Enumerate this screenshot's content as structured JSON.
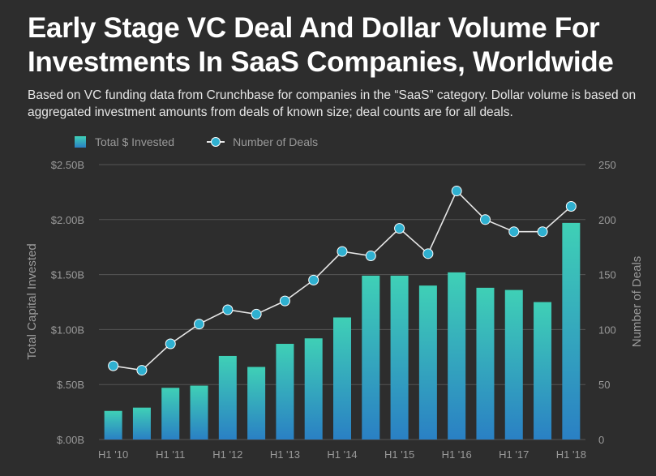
{
  "header": {
    "title": "Early Stage VC Deal And Dollar Volume For Investments In SaaS Companies, Worldwide",
    "subtitle": "Based on VC funding data from Crunchbase for companies in the “SaaS” category. Dollar volume is based on aggregated investment amounts from deals of known size; deal counts are for all deals."
  },
  "legend": {
    "bars_label": "Total $ Invested",
    "line_label": "Number of Deals"
  },
  "colors": {
    "background": "#2d2d2d",
    "bar_top": "#3fd0b6",
    "bar_bottom": "#2a80c4",
    "marker": "#2fb0d0",
    "line": "#e6e6e6",
    "grid": "#555555",
    "axis_text": "#9a9a9a"
  },
  "chart_data": {
    "type": "bar",
    "categories": [
      "H1 '10",
      "H2 '10",
      "H1 '11",
      "H2 '11",
      "H1 '12",
      "H2 '12",
      "H1 '13",
      "H2 '13",
      "H1 '14",
      "H2 '14",
      "H1 '15",
      "H2 '15",
      "H1 '16",
      "H2 '16",
      "H1 '17",
      "H2 '17",
      "H1 '18"
    ],
    "x_tick_labels": [
      "H1 '10",
      "",
      "H1 '11",
      "",
      "H1 '12",
      "",
      "H1 '13",
      "",
      "H1 '14",
      "",
      "H1 '15",
      "",
      "H1 '16",
      "",
      "H1 '17",
      "",
      "H1 '18"
    ],
    "series": [
      {
        "name": "Total $ Invested",
        "type": "bar",
        "axis": "left",
        "values": [
          0.26,
          0.29,
          0.47,
          0.49,
          0.76,
          0.66,
          0.87,
          0.92,
          1.11,
          1.49,
          1.49,
          1.4,
          1.52,
          1.38,
          1.36,
          1.25,
          1.97
        ]
      },
      {
        "name": "Number of Deals",
        "type": "line",
        "axis": "right",
        "values": [
          67,
          63,
          87,
          105,
          118,
          114,
          126,
          145,
          171,
          167,
          192,
          169,
          226,
          200,
          189,
          189,
          212
        ]
      }
    ],
    "ylabel": "Total Capital Invested",
    "y2label": "Number of Deals",
    "ylim": [
      0,
      2.5
    ],
    "y2lim": [
      0,
      250
    ],
    "y_ticks": [
      "$.00B",
      "$.50B",
      "$1.00B",
      "$1.50B",
      "$2.00B",
      "$2.50B"
    ],
    "y2_ticks": [
      "0",
      "50",
      "100",
      "150",
      "200",
      "250"
    ],
    "grid": true,
    "legend_position": "top-left"
  }
}
